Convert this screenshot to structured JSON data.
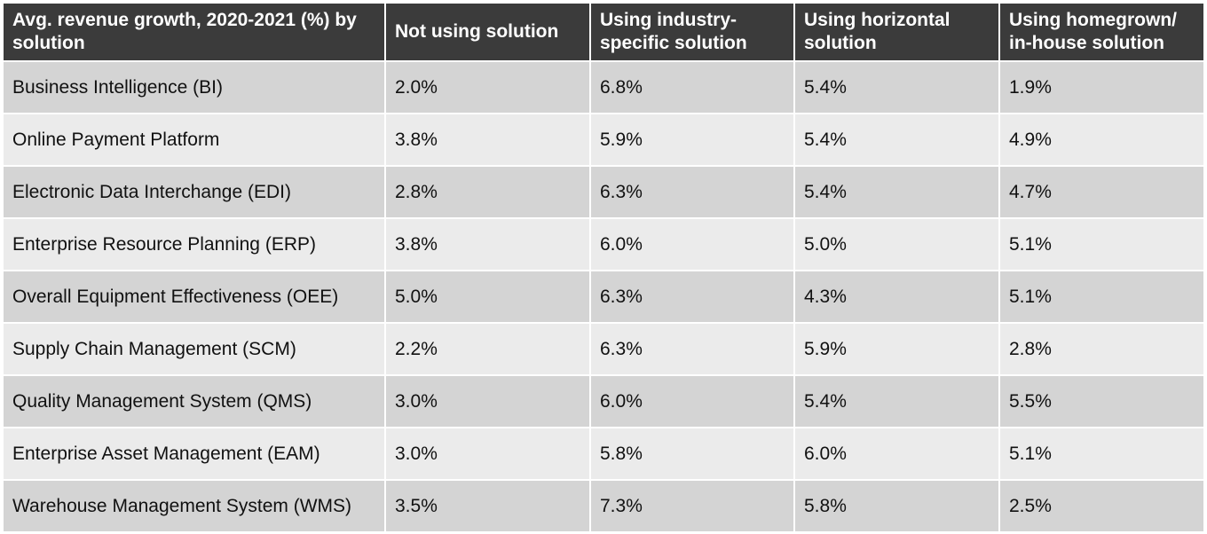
{
  "chart_data": {
    "type": "table",
    "columns": [
      "Avg. revenue growth, 2020-2021 (%) by solution",
      "Not using solution",
      "Using industry-specific solution",
      "Using horizontal solution",
      "Using homegrown/ in-house solution"
    ],
    "rows": [
      [
        "Business Intelligence (BI)",
        "2.0%",
        "6.8%",
        "5.4%",
        "1.9%"
      ],
      [
        "Online Payment Platform",
        "3.8%",
        "5.9%",
        "5.4%",
        "4.9%"
      ],
      [
        "Electronic Data Interchange (EDI)",
        "2.8%",
        "6.3%",
        "5.4%",
        "4.7%"
      ],
      [
        "Enterprise Resource Planning (ERP)",
        "3.8%",
        "6.0%",
        "5.0%",
        "5.1%"
      ],
      [
        "Overall Equipment Effectiveness (OEE)",
        "5.0%",
        "6.3%",
        "4.3%",
        "5.1%"
      ],
      [
        "Supply Chain Management (SCM)",
        "2.2%",
        "6.3%",
        "5.9%",
        "2.8%"
      ],
      [
        "Quality Management System (QMS)",
        "3.0%",
        "6.0%",
        "5.4%",
        "5.5%"
      ],
      [
        "Enterprise Asset Management (EAM)",
        "3.0%",
        "5.8%",
        "6.0%",
        "5.1%"
      ],
      [
        "Warehouse Management System (WMS)",
        "3.5%",
        "7.3%",
        "5.8%",
        "2.5%"
      ]
    ]
  },
  "colors": {
    "header_bg": "#3b3b3b",
    "header_text": "#ffffff",
    "row_dark": "#d4d4d4",
    "row_light": "#ebebeb"
  }
}
